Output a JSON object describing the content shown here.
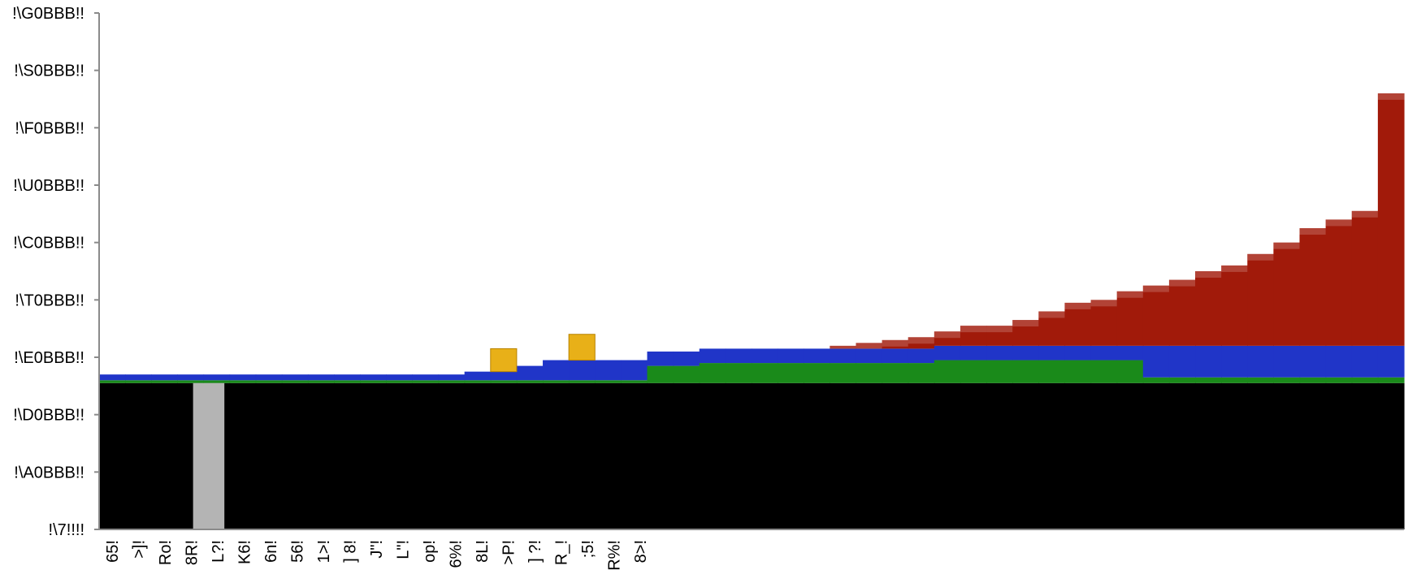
{
  "chart_data": {
    "type": "bar",
    "title": "",
    "xlabel": "",
    "ylabel": "",
    "y_ticks": [
      "!\\7!!!!",
      "!\\A0BBB!!",
      "!\\D0BBB!!",
      "!\\E0BBB!!",
      "!\\T0BBB!!",
      "!\\C0BBB!!",
      "!\\U0BBB!!",
      "!\\F0BBB!!",
      "!\\S0BBB!!",
      "!\\G0BBB!!"
    ],
    "ylim": [
      0,
      9
    ],
    "x_ticks": [
      "65!",
      ">]!",
      "Ro!",
      "8R!",
      "L?!",
      "K6!",
      "6n!",
      "56!",
      "1>!",
      "] 8!",
      "J\"!",
      "L\"!",
      "op!",
      "6%!",
      "8L!",
      ">P!",
      "] ?!",
      "R_!",
      ";5!",
      "R%!",
      "8>!"
    ],
    "categories_count": 50,
    "series": [
      {
        "name": "",
        "color": "#000000",
        "values": [
          2.55,
          2.55,
          2.55,
          2.55,
          2.55,
          2.55,
          2.55,
          2.55,
          2.55,
          2.55,
          2.55,
          2.55,
          2.55,
          2.55,
          2.55,
          2.55,
          2.55,
          2.55,
          2.55,
          2.55,
          2.55,
          2.55,
          2.55,
          2.55,
          2.55,
          2.55,
          2.55,
          2.55,
          2.55,
          2.55,
          2.55,
          2.55,
          2.55,
          2.55,
          2.55,
          2.55,
          2.55,
          2.55,
          2.55,
          2.55,
          2.55,
          2.55,
          2.55,
          2.55,
          2.55,
          2.55,
          2.55,
          2.55,
          2.55,
          2.55
        ]
      },
      {
        "name": "",
        "color": "#1a8a1a",
        "values": [
          0.05,
          0.05,
          0.05,
          0.05,
          0.05,
          0.05,
          0.05,
          0.05,
          0.05,
          0.05,
          0.05,
          0.05,
          0.05,
          0.05,
          0.05,
          0.05,
          0.05,
          0.05,
          0.05,
          0.05,
          0.05,
          0.3,
          0.3,
          0.35,
          0.35,
          0.35,
          0.35,
          0.35,
          0.35,
          0.35,
          0.35,
          0.35,
          0.4,
          0.4,
          0.4,
          0.4,
          0.4,
          0.4,
          0.4,
          0.4,
          0.1,
          0.1,
          0.1,
          0.1,
          0.1,
          0.1,
          0.1,
          0.1,
          0.1,
          0.1
        ]
      },
      {
        "name": "",
        "color": "#2035c8",
        "values": [
          0.1,
          0.1,
          0.1,
          0.1,
          0.1,
          0.1,
          0.1,
          0.1,
          0.1,
          0.1,
          0.1,
          0.1,
          0.1,
          0.1,
          0.15,
          0.15,
          0.25,
          0.35,
          0.35,
          0.35,
          0.35,
          0.25,
          0.25,
          0.25,
          0.25,
          0.25,
          0.25,
          0.25,
          0.25,
          0.25,
          0.25,
          0.25,
          0.25,
          0.25,
          0.25,
          0.25,
          0.25,
          0.25,
          0.25,
          0.25,
          0.55,
          0.55,
          0.55,
          0.55,
          0.55,
          0.55,
          0.55,
          0.55,
          0.55,
          0.55
        ]
      },
      {
        "name": "",
        "color": "#a11a0a",
        "values": [
          0,
          0,
          0,
          0,
          0,
          0,
          0,
          0,
          0,
          0,
          0,
          0,
          0,
          0,
          0,
          0,
          0,
          0,
          0,
          0,
          0,
          0,
          0,
          0,
          0,
          0,
          0,
          0,
          0.05,
          0.1,
          0.15,
          0.2,
          0.25,
          0.35,
          0.35,
          0.45,
          0.6,
          0.75,
          0.8,
          0.95,
          1.05,
          1.15,
          1.3,
          1.4,
          1.6,
          1.8,
          2.05,
          2.2,
          2.35,
          4.4
        ]
      }
    ],
    "highlight_bars": [
      {
        "category_index": 15,
        "color": "#e8b018",
        "value": 0.4
      },
      {
        "category_index": 18,
        "color": "#e8b018",
        "value": 0.45
      }
    ],
    "grid": false,
    "legend": "none"
  }
}
